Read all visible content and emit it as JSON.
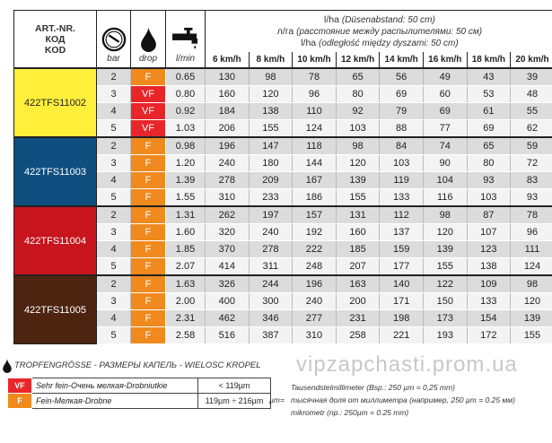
{
  "header": {
    "code_label": [
      "ART.-NR.",
      "КОД",
      "KOD"
    ],
    "bar_label": "bar",
    "drop_label": "drop",
    "flow_label": "l/min",
    "lha_lines": [
      {
        "unit": "l/ha",
        "note": "(Düsenabstand: 50 cm)"
      },
      {
        "unit": "л/га",
        "note": "(расстояние между распылителями: 50 см)"
      },
      {
        "unit": "l/ha",
        "note": "(odległość między dyszami: 50 cm)"
      }
    ],
    "speeds": [
      "6 km/h",
      "8 km/h",
      "10 km/h",
      "12 km/h",
      "14 km/h",
      "16 km/h",
      "18 km/h",
      "20 km/h"
    ],
    "icons": [
      "pressure-gauge-icon",
      "drop-icon",
      "faucet-icon"
    ]
  },
  "colors": {
    "VF": "#e8262a",
    "F": "#f08a1e",
    "11002": "#ffef3a",
    "11003": "#0f4f80",
    "11004": "#c8141d",
    "11005": "#4d2410"
  },
  "groups": [
    {
      "code": "422TFS11002",
      "color": "#ffef3a",
      "text": "#222",
      "rows": [
        [
          "2",
          "F",
          "0.65",
          "130",
          "98",
          "78",
          "65",
          "56",
          "49",
          "43",
          "39"
        ],
        [
          "3",
          "VF",
          "0.80",
          "160",
          "120",
          "96",
          "80",
          "69",
          "60",
          "53",
          "48"
        ],
        [
          "4",
          "VF",
          "0.92",
          "184",
          "138",
          "110",
          "92",
          "79",
          "69",
          "61",
          "55"
        ],
        [
          "5",
          "VF",
          "1.03",
          "206",
          "155",
          "124",
          "103",
          "88",
          "77",
          "69",
          "62"
        ]
      ]
    },
    {
      "code": "422TFS11003",
      "color": "#0f4f80",
      "text": "#fff",
      "rows": [
        [
          "2",
          "F",
          "0.98",
          "196",
          "147",
          "118",
          "98",
          "84",
          "74",
          "65",
          "59"
        ],
        [
          "3",
          "F",
          "1.20",
          "240",
          "180",
          "144",
          "120",
          "103",
          "90",
          "80",
          "72"
        ],
        [
          "4",
          "F",
          "1.39",
          "278",
          "209",
          "167",
          "139",
          "119",
          "104",
          "93",
          "83"
        ],
        [
          "5",
          "F",
          "1.55",
          "310",
          "233",
          "186",
          "155",
          "133",
          "116",
          "103",
          "93"
        ]
      ]
    },
    {
      "code": "422TFS11004",
      "color": "#c8141d",
      "text": "#fff",
      "rows": [
        [
          "2",
          "F",
          "1.31",
          "262",
          "197",
          "157",
          "131",
          "112",
          "98",
          "87",
          "78"
        ],
        [
          "3",
          "F",
          "1.60",
          "320",
          "240",
          "192",
          "160",
          "137",
          "120",
          "107",
          "96"
        ],
        [
          "4",
          "F",
          "1.85",
          "370",
          "278",
          "222",
          "185",
          "159",
          "139",
          "123",
          "111"
        ],
        [
          "5",
          "F",
          "2.07",
          "414",
          "311",
          "248",
          "207",
          "177",
          "155",
          "138",
          "124"
        ]
      ]
    },
    {
      "code": "422TFS11005",
      "color": "#4d2410",
      "text": "#fff",
      "rows": [
        [
          "2",
          "F",
          "1.63",
          "326",
          "244",
          "196",
          "163",
          "140",
          "122",
          "109",
          "98"
        ],
        [
          "3",
          "F",
          "2.00",
          "400",
          "300",
          "240",
          "200",
          "171",
          "150",
          "133",
          "120"
        ],
        [
          "4",
          "F",
          "2.31",
          "462",
          "346",
          "277",
          "231",
          "198",
          "173",
          "154",
          "139"
        ],
        [
          "5",
          "F",
          "2.58",
          "516",
          "387",
          "310",
          "258",
          "221",
          "193",
          "172",
          "155"
        ]
      ]
    }
  ],
  "legend": {
    "title": "TROPFENGRÖSSE - РАЗМЕРЫ КАПЕЛЬ - WIELOSC KROPEL",
    "items": [
      {
        "code": "VF",
        "desc": "Sehr fein-Очень мелкая-Drobniutkie",
        "range": "< 119µm"
      },
      {
        "code": "F",
        "desc": "Fein-Мелкая-Drobne",
        "range": "119µm ÷ 216µm"
      }
    ]
  },
  "note": {
    "symbol": "µm=",
    "lines": [
      "Tausendstelmillimeter (Bsp.: 250 µm = 0,25 mm)",
      "тысячная доля от миллиметра (например, 250 µm = 0.25 мм)",
      "mikrometr (np.: 250µm = 0.25 mm)"
    ]
  },
  "watermark": "vipzapchasti.prom.ua"
}
